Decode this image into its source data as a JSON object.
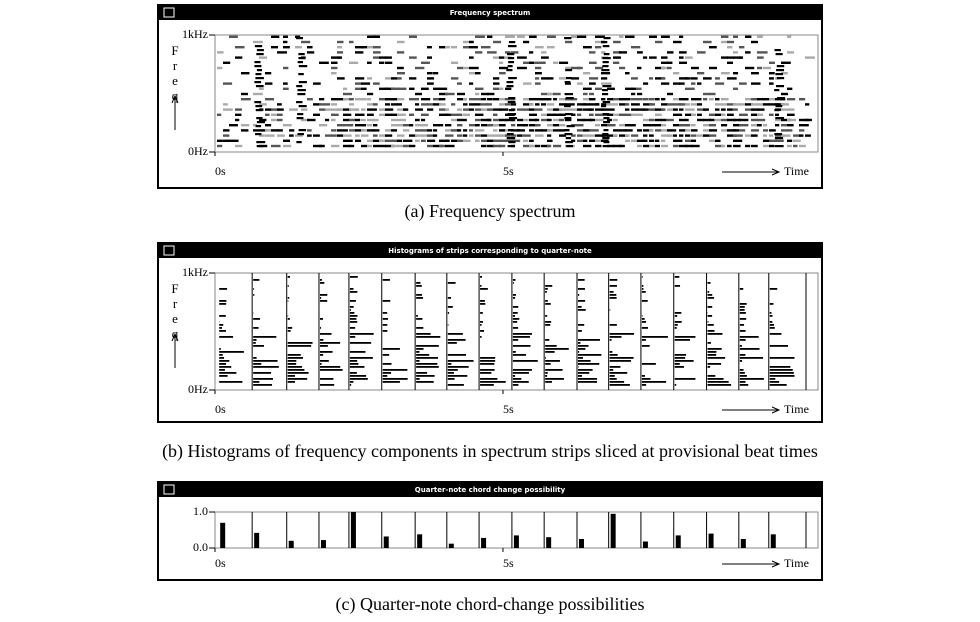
{
  "chart_data": [
    {
      "type": "spectrogram",
      "title": "Frequency spectrum",
      "caption": "(a) Frequency spectrum",
      "xlabel": "Time",
      "ylabel": "Freq",
      "xlim": [
        0,
        10.47
      ],
      "xticks": [
        {
          "value": 0,
          "label": "0s"
        },
        {
          "value": 5,
          "label": "5s"
        }
      ],
      "ylim": [
        0,
        1000
      ],
      "yticks": [
        {
          "value": 0,
          "label": "0Hz"
        },
        {
          "value": 1000,
          "label": "1kHz"
        }
      ]
    },
    {
      "type": "histogram-strips",
      "title": "Histograms of strips corresponding to quarter-note",
      "caption": "(b) Histograms of frequency components in spectrum strips sliced at provisional beat times",
      "xlabel": "Time",
      "ylabel": "Freq",
      "xlim": [
        0,
        10.47
      ],
      "xticks": [
        {
          "value": 0,
          "label": "0s"
        },
        {
          "value": 5,
          "label": "5s"
        }
      ],
      "ylim": [
        0,
        1000
      ],
      "yticks": [
        {
          "value": 0,
          "label": "0Hz"
        },
        {
          "value": 1000,
          "label": "1kHz"
        }
      ]
    },
    {
      "type": "bar",
      "title": "Quarter-note chord change possibility",
      "caption": "(c) Quarter-note chord-change possibilities",
      "xlabel": "Time",
      "xlim": [
        0,
        10.47
      ],
      "xticks": [
        {
          "value": 0,
          "label": "0s"
        },
        {
          "value": 5,
          "label": "5s"
        }
      ],
      "ylim": [
        0,
        1.0
      ],
      "yticks": [
        {
          "value": 0,
          "label": "0.0"
        },
        {
          "value": 1,
          "label": "1.0"
        }
      ],
      "color": "#000000",
      "x": [
        0.09,
        0.68,
        1.28,
        1.84,
        2.36,
        2.93,
        3.51,
        4.06,
        4.62,
        5.19,
        5.75,
        6.32,
        6.87,
        7.43,
        8.0,
        8.57,
        9.13,
        9.65
      ],
      "values": [
        0.7,
        0.42,
        0.2,
        0.22,
        1.0,
        0.32,
        0.38,
        0.12,
        0.28,
        0.35,
        0.3,
        0.25,
        0.95,
        0.18,
        0.35,
        0.4,
        0.25,
        0.38
      ]
    }
  ]
}
